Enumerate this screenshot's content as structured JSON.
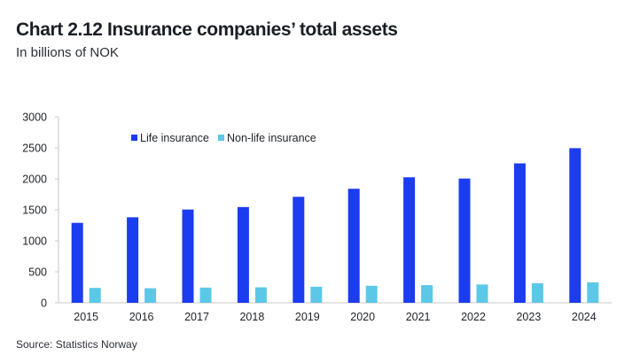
{
  "title": "Chart 2.12 Insurance companies’ total assets",
  "subtitle": "In billions of NOK",
  "source": "Source: Statistics Norway",
  "chart_data": {
    "type": "bar",
    "title": "Chart 2.12 Insurance companies’ total assets",
    "subtitle": "In billions of NOK",
    "xlabel": "",
    "ylabel": "",
    "ylim": [
      0,
      3000
    ],
    "yticks": [
      0,
      500,
      1000,
      1500,
      2000,
      2500,
      3000
    ],
    "grid": false,
    "legend_position": "top-left",
    "categories": [
      "2015",
      "2016",
      "2017",
      "2018",
      "2019",
      "2020",
      "2021",
      "2022",
      "2023",
      "2024"
    ],
    "series": [
      {
        "name": "Life insurance",
        "color": "#1c3cf0",
        "values": [
          1290,
          1380,
          1505,
          1545,
          1710,
          1840,
          2025,
          2005,
          2250,
          2495
        ]
      },
      {
        "name": "Non-life insurance",
        "color": "#5bc8e8",
        "values": [
          240,
          235,
          245,
          250,
          260,
          275,
          285,
          295,
          315,
          330
        ]
      }
    ]
  }
}
